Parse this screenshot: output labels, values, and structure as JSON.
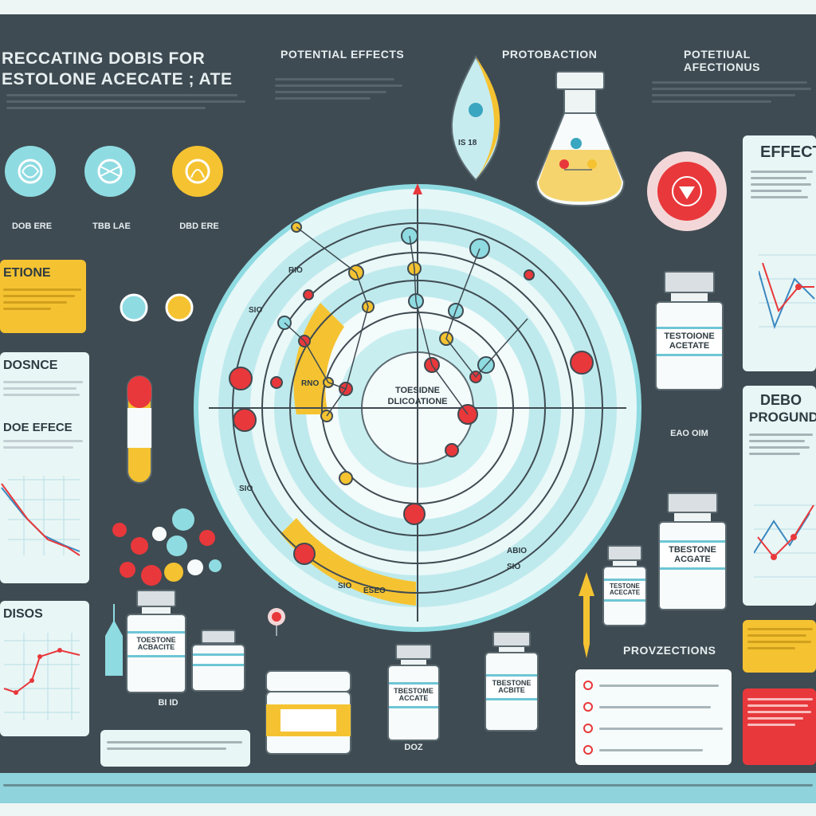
{
  "header": {
    "title_line1": "RECCATING DOBIS FOR",
    "title_line2": "ESTOLONE ACECATE ; ATE"
  },
  "sections": {
    "potential_effects": "POTENTIAL EFFECTS",
    "protobaction": "PROTOBACTION",
    "potential_affections": "POTETIUAL AFECTIONUS"
  },
  "badges": {
    "badge1": "DOB ERE",
    "badge2": "TBB LAE",
    "badge3": "DBD ERE"
  },
  "left_panels": {
    "yellow_title": "ETIONE",
    "dosnce_title": "DOSNCE",
    "effece_title": "DOE EFECE",
    "disos_title": "DISOS"
  },
  "right_panels": {
    "effect_title": "EFFECT",
    "debo_title_line1": "DEBO",
    "debo_title_line2": "PROGUNDI",
    "provzections_title": "PROVZECTIONS"
  },
  "drop": {
    "label": "IS 18"
  },
  "wheel": {
    "center_line1": "TOESIDNE",
    "center_line2": "DLICOATIONE",
    "ring_tick_1": "SIO",
    "ring_tick_2": "SIO",
    "ring_tick_3": "SIO",
    "ring_tick_4": "SIO",
    "ring_label_a": "RIO",
    "ring_label_b": "RNO",
    "ring_label_c": "ESEO",
    "ring_label_d": "ABIO"
  },
  "vials": {
    "big_right": "TESTOIONE\nACETATE",
    "big_right_caption": "EAO OIM",
    "mid_right": "TBESTONE\nACGATE",
    "small_right": "TESTONE\nACECATE",
    "bottom_left": "TOESTONE\nACBACITE",
    "bottom_left_caption": "BI ID",
    "bottom_mid1": "TBESTOME\nACCATE",
    "bottom_mid2": "TBESTONE\nACBITE",
    "bottom_caption": "DOZ"
  },
  "colors": {
    "board": "#3f4b52",
    "accent_cyan": "#6ec6d5",
    "accent_yellow": "#f5c331",
    "accent_red": "#e8383b",
    "panel": "#e9f6f6"
  },
  "icons": [
    "drop-icon",
    "flask-icon",
    "down-arrow-icon",
    "pill-capsule-icon",
    "syringe-icon",
    "location-pin-icon",
    "gauge-arrow-icon"
  ]
}
